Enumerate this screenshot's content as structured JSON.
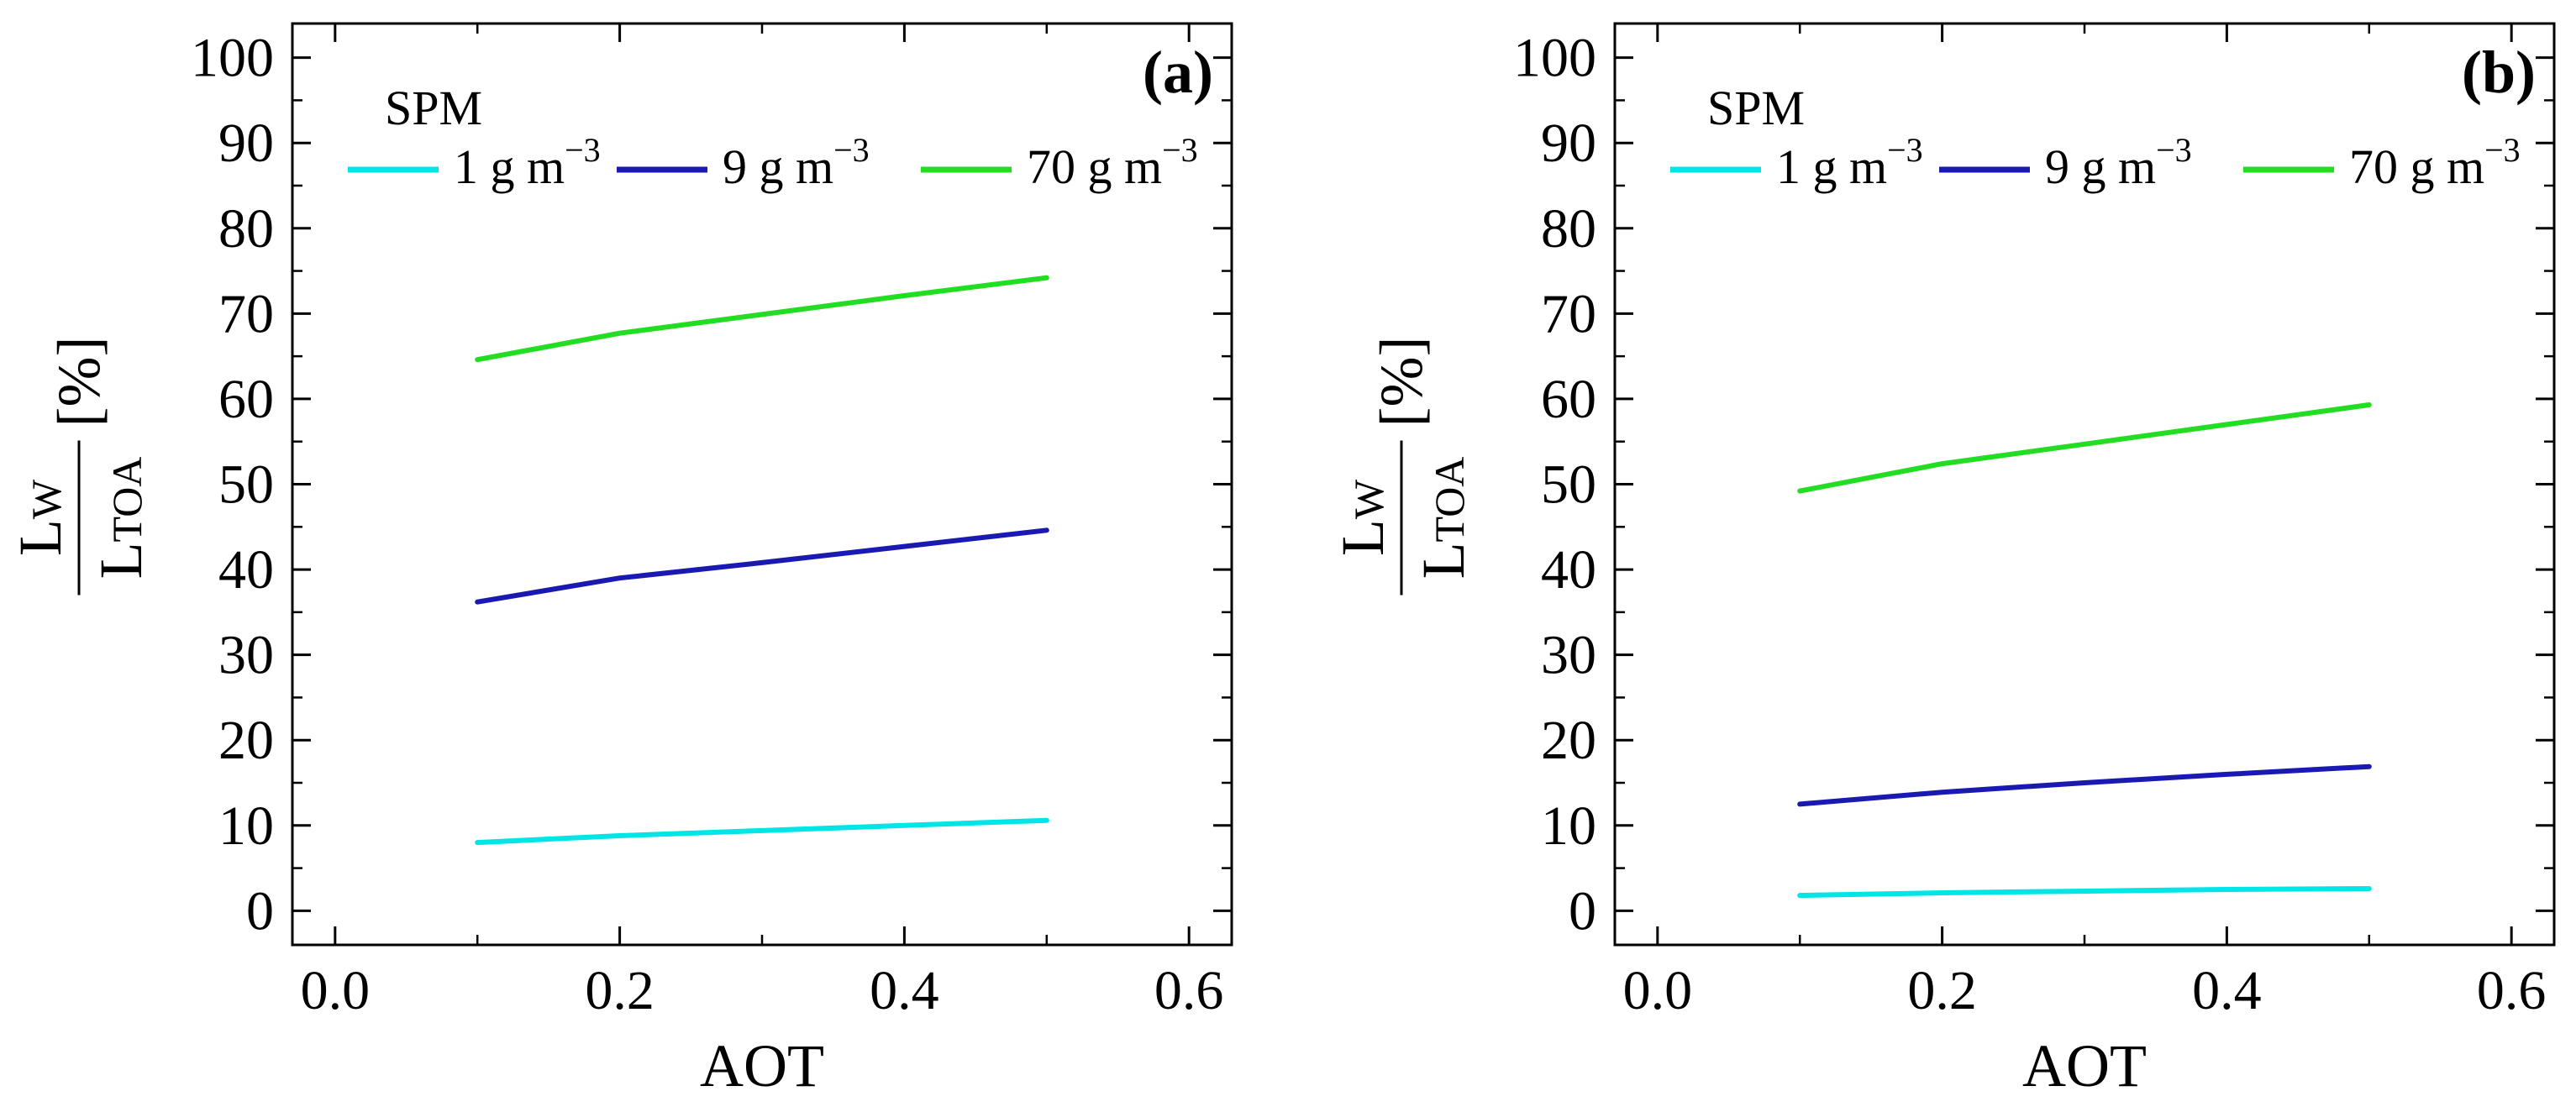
{
  "chart_data": [
    {
      "type": "line",
      "panel_label": "(a)",
      "xlabel": "AOT",
      "ylabel": {
        "numerator": "L",
        "numerator_sub": "W",
        "denominator": "L",
        "denominator_sub": "TOA",
        "unit": "[%]"
      },
      "xlim": [
        -0.03,
        0.63
      ],
      "ylim": [
        -4,
        104
      ],
      "xticks": [
        "0.0",
        "0.2",
        "0.4",
        "0.6"
      ],
      "xtick_values": [
        0.0,
        0.2,
        0.4,
        0.6
      ],
      "yticks": [
        "0",
        "10",
        "20",
        "30",
        "40",
        "50",
        "60",
        "70",
        "80",
        "90",
        "100"
      ],
      "ytick_values": [
        0,
        10,
        20,
        30,
        40,
        50,
        60,
        70,
        80,
        90,
        100
      ],
      "x": [
        0.1,
        0.2,
        0.3,
        0.4,
        0.5
      ],
      "legend": {
        "title": "SPM",
        "position": "top-left"
      },
      "series": [
        {
          "name": "1 g m",
          "exponent": "−3",
          "color": "#00e5e5",
          "values": [
            8.0,
            8.8,
            9.4,
            10.0,
            10.6
          ]
        },
        {
          "name": "9 g m",
          "exponent": "−3",
          "color": "#1a1ab3",
          "values": [
            36.2,
            39.0,
            40.8,
            42.7,
            44.6
          ]
        },
        {
          "name": "70 g m",
          "exponent": "−3",
          "color": "#22dd22",
          "values": [
            64.6,
            67.7,
            69.9,
            72.1,
            74.2
          ]
        }
      ]
    },
    {
      "type": "line",
      "panel_label": "(b)",
      "xlabel": "AOT",
      "ylabel": {
        "numerator": "L",
        "numerator_sub": "W",
        "denominator": "L",
        "denominator_sub": "TOA",
        "unit": "[%]"
      },
      "xlim": [
        -0.03,
        0.63
      ],
      "ylim": [
        -4,
        104
      ],
      "xticks": [
        "0.0",
        "0.2",
        "0.4",
        "0.6"
      ],
      "xtick_values": [
        0.0,
        0.2,
        0.4,
        0.6
      ],
      "yticks": [
        "0",
        "10",
        "20",
        "30",
        "40",
        "50",
        "60",
        "70",
        "80",
        "90",
        "100"
      ],
      "ytick_values": [
        0,
        10,
        20,
        30,
        40,
        50,
        60,
        70,
        80,
        90,
        100
      ],
      "x": [
        0.1,
        0.2,
        0.3,
        0.4,
        0.5
      ],
      "legend": {
        "title": "SPM",
        "position": "top-left"
      },
      "series": [
        {
          "name": "1 g m",
          "exponent": "−3",
          "color": "#00e5e5",
          "values": [
            1.8,
            2.1,
            2.3,
            2.5,
            2.6
          ]
        },
        {
          "name": "9 g m",
          "exponent": "−3",
          "color": "#1a1ab3",
          "values": [
            12.5,
            13.9,
            15.0,
            16.0,
            16.9
          ]
        },
        {
          "name": "70 g m",
          "exponent": "−3",
          "color": "#22dd22",
          "values": [
            49.2,
            52.4,
            54.7,
            57.0,
            59.3
          ]
        }
      ]
    }
  ]
}
